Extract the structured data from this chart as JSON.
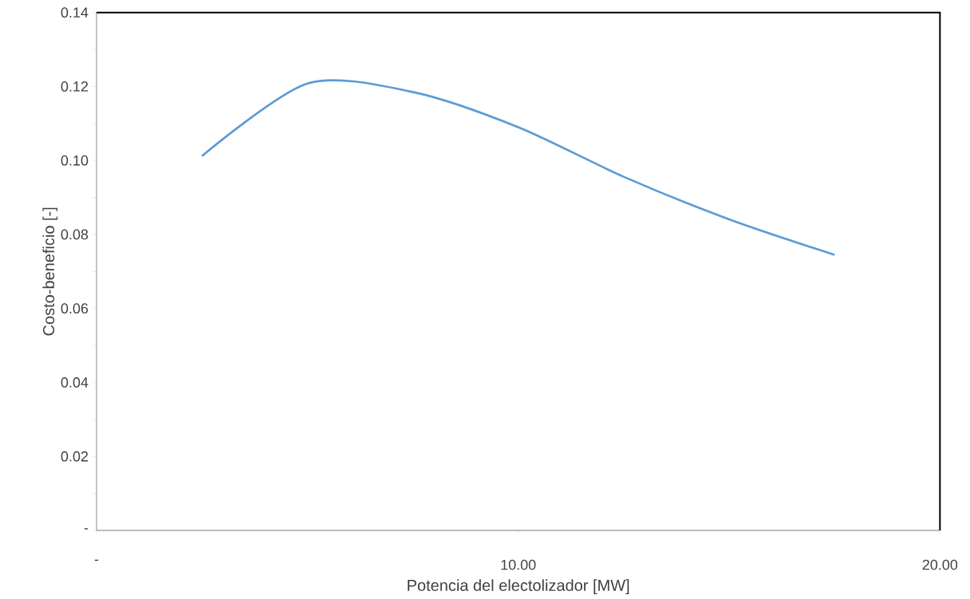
{
  "chart_data": {
    "type": "line",
    "xlabel": "Potencia del electolizador [MW]",
    "ylabel": "Costo-beneficio [-]",
    "x": [
      2.5,
      5,
      7.5,
      10,
      12.5,
      15,
      17.5
    ],
    "series": [
      {
        "color": "#5b9bd5",
        "values": [
          0.1012,
          0.1208,
          0.1185,
          0.109,
          0.0956,
          0.0841,
          0.0745
        ]
      }
    ],
    "xlim": [
      0,
      20
    ],
    "ylim": [
      0,
      0.14
    ],
    "xticks": [
      {
        "value": 0,
        "label": "-"
      },
      {
        "value": 10,
        "label": "10.00"
      },
      {
        "value": 20,
        "label": "20.00"
      }
    ],
    "yticks": [
      {
        "value": 0,
        "label": "-"
      },
      {
        "value": 0.01,
        "label": null
      },
      {
        "value": 0.02,
        "label": "0.02"
      },
      {
        "value": 0.03,
        "label": null
      },
      {
        "value": 0.04,
        "label": "0.04"
      },
      {
        "value": 0.05,
        "label": null
      },
      {
        "value": 0.06,
        "label": "0.06"
      },
      {
        "value": 0.07,
        "label": null
      },
      {
        "value": 0.08,
        "label": "0.08"
      },
      {
        "value": 0.09,
        "label": null
      },
      {
        "value": 0.1,
        "label": "0.10"
      },
      {
        "value": 0.11,
        "label": null
      },
      {
        "value": 0.12,
        "label": "0.12"
      },
      {
        "value": 0.13,
        "label": null
      },
      {
        "value": 0.14,
        "label": "0.14"
      }
    ],
    "grid": false,
    "marker": "none",
    "line_style": "solid"
  }
}
